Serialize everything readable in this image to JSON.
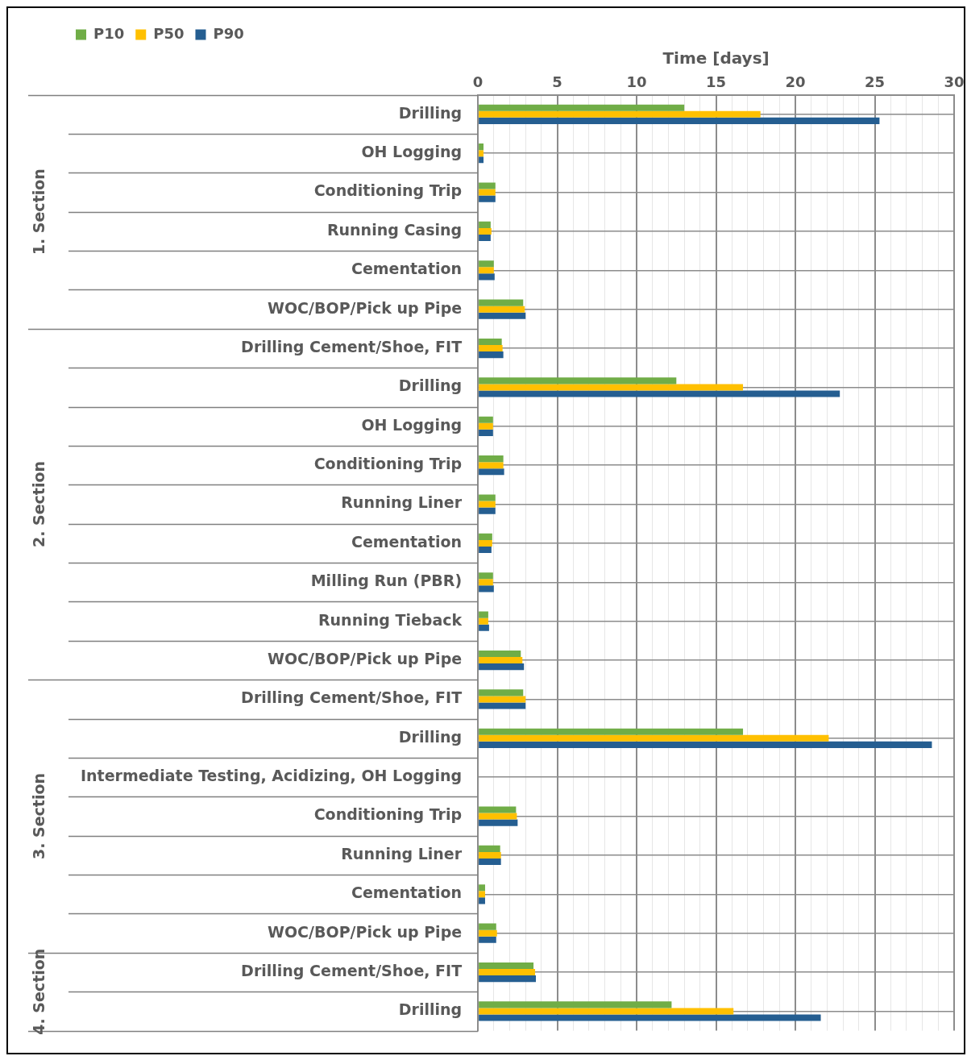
{
  "chart_data": {
    "type": "bar",
    "orientation": "horizontal",
    "xlabel": "Time [days]",
    "categories": [
      "Drilling",
      "OH Logging",
      "Conditioning Trip",
      "Running Casing",
      "Cementation",
      "WOC/BOP/Pick up Pipe",
      "Drilling Cement/Shoe, FIT",
      "Drilling",
      "OH Logging",
      "Conditioning Trip",
      "Running Liner",
      "Cementation",
      "Milling Run (PBR)",
      "Running Tieback",
      "WOC/BOP/Pick up Pipe",
      "Drilling Cement/Shoe, FIT",
      "Drilling",
      "Intermediate Testing, Acidizing, OH Logging",
      "Conditioning Trip",
      "Running Liner",
      "Cementation",
      "WOC/BOP/Pick up Pipe",
      "Drilling Cement/Shoe, FIT",
      "Drilling"
    ],
    "series": [
      {
        "name": "P10",
        "color": "#70ad47",
        "values": [
          13.0,
          0.35,
          1.1,
          0.8,
          1.0,
          2.85,
          1.5,
          12.5,
          0.95,
          1.6,
          1.1,
          0.9,
          0.95,
          0.65,
          2.7,
          2.85,
          16.7,
          null,
          2.4,
          1.4,
          0.45,
          1.15,
          3.5,
          12.2
        ]
      },
      {
        "name": "P50",
        "color": "#ffc000",
        "values": [
          17.8,
          0.35,
          1.1,
          0.85,
          1.0,
          2.95,
          1.55,
          16.7,
          0.95,
          1.6,
          1.1,
          0.9,
          0.95,
          0.65,
          2.8,
          3.0,
          22.1,
          null,
          2.45,
          1.45,
          0.45,
          1.2,
          3.6,
          16.1
        ]
      },
      {
        "name": "P90",
        "color": "#255e91",
        "values": [
          25.3,
          0.35,
          1.1,
          0.8,
          1.05,
          3.0,
          1.6,
          22.8,
          0.95,
          1.65,
          1.1,
          0.85,
          1.0,
          0.7,
          2.9,
          3.0,
          28.6,
          null,
          2.5,
          1.45,
          0.45,
          1.15,
          3.65,
          21.6
        ]
      }
    ],
    "xlim": [
      0,
      30
    ],
    "xticks": [
      0,
      {
        "value": 1,
        "label": null
      },
      {
        "value": 2,
        "label": null
      },
      {
        "value": 3,
        "label": null
      },
      {
        "value": 4,
        "label": null
      },
      5,
      {
        "value": 6,
        "label": null
      },
      {
        "value": 7,
        "label": null
      },
      {
        "value": 8,
        "label": null
      },
      {
        "value": 9,
        "label": null
      },
      10,
      {
        "value": 11,
        "label": null
      },
      {
        "value": 12,
        "label": null
      },
      {
        "value": 13,
        "label": null
      },
      {
        "value": 14,
        "label": null
      },
      15,
      {
        "value": 16,
        "label": null
      },
      {
        "value": 17,
        "label": null
      },
      {
        "value": 18,
        "label": null
      },
      {
        "value": 19,
        "label": null
      },
      20,
      {
        "value": 21,
        "label": null
      },
      {
        "value": 22,
        "label": null
      },
      {
        "value": 23,
        "label": null
      },
      {
        "value": 24,
        "label": null
      },
      25,
      {
        "value": 26,
        "label": null
      },
      {
        "value": 27,
        "label": null
      },
      {
        "value": 28,
        "label": null
      },
      {
        "value": 29,
        "label": null
      },
      30
    ],
    "annotations": [
      "1. Section",
      "2. Section",
      "3. Section",
      "4. Section"
    ],
    "grid": true,
    "legend": "top left"
  }
}
